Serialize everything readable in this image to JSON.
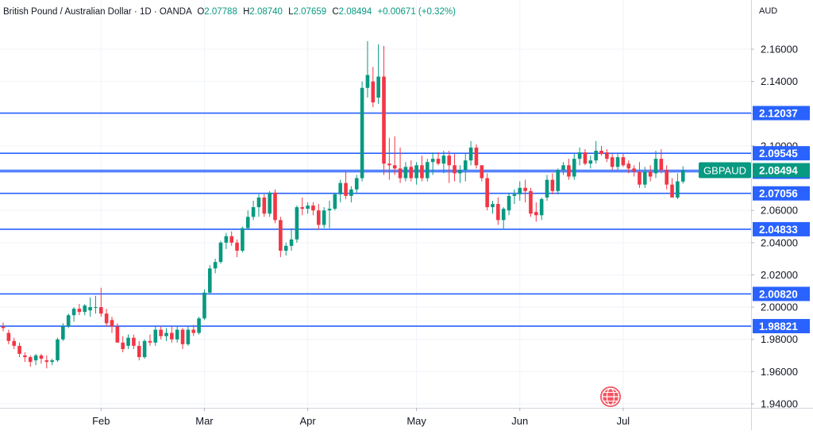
{
  "legend": {
    "symbol": "British Pound / Australian Dollar · 1D · OANDA",
    "o_label": "O",
    "o": "2.07788",
    "h_label": "H",
    "h": "2.08740",
    "l_label": "L",
    "l": "2.07659",
    "c_label": "C",
    "c": "2.08494",
    "change": "+0.00671 (+0.32%)"
  },
  "currency": "AUD",
  "colors": {
    "up": "#089981",
    "down": "#f23645",
    "line": "#2962ff",
    "tag": "#089981"
  },
  "chart_data": {
    "type": "candlestick",
    "y_ticks": [
      "2.16000",
      "2.14000",
      "2.12000",
      "2.10000",
      "2.06000",
      "2.04000",
      "2.02000",
      "2.00000",
      "1.98000",
      "1.96000",
      "1.94000"
    ],
    "ylim": [
      1.94,
      2.165
    ],
    "x_ticks": [
      "Feb",
      "Mar",
      "Apr",
      "May",
      "Jun",
      "Jul"
    ],
    "x_tick_index": [
      18,
      37,
      56,
      76,
      95,
      114
    ],
    "horizontal_levels": [
      {
        "value": 2.12037,
        "label": "2.12037"
      },
      {
        "value": 2.09545,
        "label": "2.09545"
      },
      {
        "value": 2.08399,
        "label": "2.08399"
      },
      {
        "value": 2.07056,
        "label": "2.07056"
      },
      {
        "value": 2.04833,
        "label": "2.04833"
      },
      {
        "value": 2.0082,
        "label": "2.00820"
      },
      {
        "value": 1.98821,
        "label": "1.98821"
      }
    ],
    "current_price": {
      "symbol": "GBPAUD",
      "value": 2.08494,
      "label": "2.08494"
    },
    "candles": [
      [
        1.988,
        1.9905,
        1.985,
        1.987
      ],
      [
        1.984,
        1.986,
        1.977,
        1.979
      ],
      [
        1.979,
        1.981,
        1.974,
        1.976
      ],
      [
        1.976,
        1.978,
        1.969,
        1.971
      ],
      [
        1.97,
        1.972,
        1.966,
        1.969
      ],
      [
        1.969,
        1.97,
        1.963,
        1.966
      ],
      [
        1.967,
        1.971,
        1.964,
        1.97
      ],
      [
        1.97,
        1.971,
        1.965,
        1.968
      ],
      [
        1.967,
        1.97,
        1.962,
        1.966
      ],
      [
        1.966,
        1.968,
        1.964,
        1.967
      ],
      [
        1.967,
        1.981,
        1.966,
        1.98
      ],
      [
        1.98,
        1.99,
        1.979,
        1.988
      ],
      [
        1.988,
        1.996,
        1.987,
        1.995
      ],
      [
        1.995,
        2.0,
        1.991,
        1.999
      ],
      [
        1.999,
        2.002,
        1.995,
        1.997
      ],
      [
        1.997,
        2.002,
        1.995,
        2.001
      ],
      [
        1.998,
        2.006,
        1.994,
        2.0
      ],
      [
        2.0,
        2.007,
        1.996,
        2.0
      ],
      [
        2.0,
        2.012,
        1.994,
        1.996
      ],
      [
        1.996,
        1.999,
        1.988,
        1.99
      ],
      [
        1.992,
        1.994,
        1.984,
        1.988
      ],
      [
        1.988,
        1.99,
        1.979,
        1.978
      ],
      [
        1.978,
        1.982,
        1.972,
        1.974
      ],
      [
        1.976,
        1.983,
        1.974,
        1.981
      ],
      [
        1.981,
        1.983,
        1.974,
        1.976
      ],
      [
        1.976,
        1.979,
        1.967,
        1.969
      ],
      [
        1.969,
        1.98,
        1.968,
        1.979
      ],
      [
        1.979,
        1.983,
        1.976,
        1.978
      ],
      [
        1.978,
        1.988,
        1.976,
        1.986
      ],
      [
        1.986,
        1.988,
        1.98,
        1.982
      ],
      [
        1.982,
        1.987,
        1.979,
        1.984
      ],
      [
        1.984,
        1.988,
        1.978,
        1.98
      ],
      [
        1.98,
        1.988,
        1.978,
        1.986
      ],
      [
        1.986,
        1.987,
        1.974,
        1.977
      ],
      [
        1.977,
        1.988,
        1.976,
        1.986
      ],
      [
        1.986,
        1.989,
        1.982,
        1.984
      ],
      [
        1.984,
        1.994,
        1.983,
        1.993
      ],
      [
        1.993,
        2.011,
        1.992,
        2.009
      ],
      [
        2.009,
        2.026,
        2.008,
        2.024
      ],
      [
        2.024,
        2.03,
        2.021,
        2.028
      ],
      [
        2.028,
        2.041,
        2.027,
        2.04
      ],
      [
        2.04,
        2.046,
        2.036,
        2.044
      ],
      [
        2.044,
        2.047,
        2.038,
        2.04
      ],
      [
        2.04,
        2.042,
        2.031,
        2.035
      ],
      [
        2.035,
        2.05,
        2.034,
        2.049
      ],
      [
        2.049,
        2.06,
        2.048,
        2.056
      ],
      [
        2.056,
        2.066,
        2.054,
        2.062
      ],
      [
        2.062,
        2.07,
        2.056,
        2.068
      ],
      [
        2.068,
        2.07,
        2.056,
        2.058
      ],
      [
        2.058,
        2.072,
        2.056,
        2.071
      ],
      [
        2.071,
        2.073,
        2.052,
        2.054
      ],
      [
        2.054,
        2.056,
        2.031,
        2.035
      ],
      [
        2.035,
        2.04,
        2.032,
        2.038
      ],
      [
        2.038,
        2.049,
        2.035,
        2.042
      ],
      [
        2.042,
        2.063,
        2.04,
        2.062
      ],
      [
        2.062,
        2.068,
        2.057,
        2.061
      ],
      [
        2.061,
        2.065,
        2.058,
        2.063
      ],
      [
        2.063,
        2.065,
        2.057,
        2.06
      ],
      [
        2.06,
        2.064,
        2.048,
        2.051
      ],
      [
        2.051,
        2.062,
        2.049,
        2.06
      ],
      [
        2.06,
        2.066,
        2.049,
        2.061
      ],
      [
        2.061,
        2.071,
        2.06,
        2.07
      ],
      [
        2.07,
        2.079,
        2.065,
        2.077
      ],
      [
        2.077,
        2.084,
        2.067,
        2.069
      ],
      [
        2.069,
        2.075,
        2.065,
        2.073
      ],
      [
        2.073,
        2.082,
        2.071,
        2.08
      ],
      [
        2.08,
        2.14,
        2.078,
        2.136
      ],
      [
        2.136,
        2.165,
        2.13,
        2.144
      ],
      [
        2.14,
        2.149,
        2.124,
        2.127
      ],
      [
        2.13,
        2.163,
        2.126,
        2.143
      ],
      [
        2.143,
        2.162,
        2.082,
        2.089
      ],
      [
        2.089,
        2.105,
        2.079,
        2.088
      ],
      [
        2.088,
        2.106,
        2.082,
        2.086
      ],
      [
        2.086,
        2.099,
        2.077,
        2.08
      ],
      [
        2.08,
        2.09,
        2.078,
        2.087
      ],
      [
        2.087,
        2.091,
        2.078,
        2.08
      ],
      [
        2.08,
        2.09,
        2.076,
        2.088
      ],
      [
        2.088,
        2.094,
        2.078,
        2.08
      ],
      [
        2.08,
        2.092,
        2.078,
        2.09
      ],
      [
        2.09,
        2.096,
        2.082,
        2.092
      ],
      [
        2.092,
        2.096,
        2.088,
        2.089
      ],
      [
        2.089,
        2.097,
        2.083,
        2.094
      ],
      [
        2.094,
        2.097,
        2.077,
        2.088
      ],
      [
        2.088,
        2.095,
        2.078,
        2.083
      ],
      [
        2.083,
        2.088,
        2.077,
        2.085
      ],
      [
        2.085,
        2.095,
        2.078,
        2.091
      ],
      [
        2.091,
        2.103,
        2.088,
        2.099
      ],
      [
        2.099,
        2.101,
        2.086,
        2.088
      ],
      [
        2.088,
        2.088,
        2.078,
        2.08
      ],
      [
        2.08,
        2.083,
        2.06,
        2.062
      ],
      [
        2.062,
        2.066,
        2.058,
        2.064
      ],
      [
        2.064,
        2.068,
        2.051,
        2.054
      ],
      [
        2.054,
        2.062,
        2.048,
        2.061
      ],
      [
        2.06,
        2.071,
        2.057,
        2.069
      ],
      [
        2.069,
        2.073,
        2.064,
        2.07
      ],
      [
        2.07,
        2.078,
        2.066,
        2.074
      ],
      [
        2.074,
        2.079,
        2.065,
        2.072
      ],
      [
        2.072,
        2.074,
        2.056,
        2.058
      ],
      [
        2.059,
        2.065,
        2.053,
        2.057
      ],
      [
        2.057,
        2.068,
        2.054,
        2.067
      ],
      [
        2.068,
        2.082,
        2.066,
        2.079
      ],
      [
        2.079,
        2.083,
        2.07,
        2.072
      ],
      [
        2.072,
        2.086,
        2.07,
        2.085
      ],
      [
        2.085,
        2.09,
        2.082,
        2.088
      ],
      [
        2.088,
        2.092,
        2.079,
        2.081
      ],
      [
        2.081,
        2.095,
        2.079,
        2.092
      ],
      [
        2.092,
        2.099,
        2.088,
        2.096
      ],
      [
        2.096,
        2.098,
        2.088,
        2.089
      ],
      [
        2.089,
        2.094,
        2.086,
        2.091
      ],
      [
        2.091,
        2.103,
        2.089,
        2.097
      ],
      [
        2.097,
        2.1,
        2.094,
        2.095
      ],
      [
        2.096,
        2.098,
        2.09,
        2.092
      ],
      [
        2.093,
        2.095,
        2.085,
        2.087
      ],
      [
        2.087,
        2.095,
        2.085,
        2.093
      ],
      [
        2.093,
        2.095,
        2.087,
        2.088
      ],
      [
        2.089,
        2.091,
        2.083,
        2.086
      ],
      [
        2.086,
        2.088,
        2.081,
        2.084
      ],
      [
        2.084,
        2.09,
        2.074,
        2.076
      ],
      [
        2.076,
        2.087,
        2.074,
        2.084
      ],
      [
        2.084,
        2.088,
        2.078,
        2.081
      ],
      [
        2.083,
        2.097,
        2.08,
        2.092
      ],
      [
        2.092,
        2.098,
        2.083,
        2.085
      ],
      [
        2.085,
        2.088,
        2.073,
        2.076
      ],
      [
        2.076,
        2.08,
        2.068,
        2.068
      ],
      [
        2.068,
        2.083,
        2.067,
        2.078
      ],
      [
        2.0779,
        2.0874,
        2.0766,
        2.0849
      ]
    ]
  }
}
